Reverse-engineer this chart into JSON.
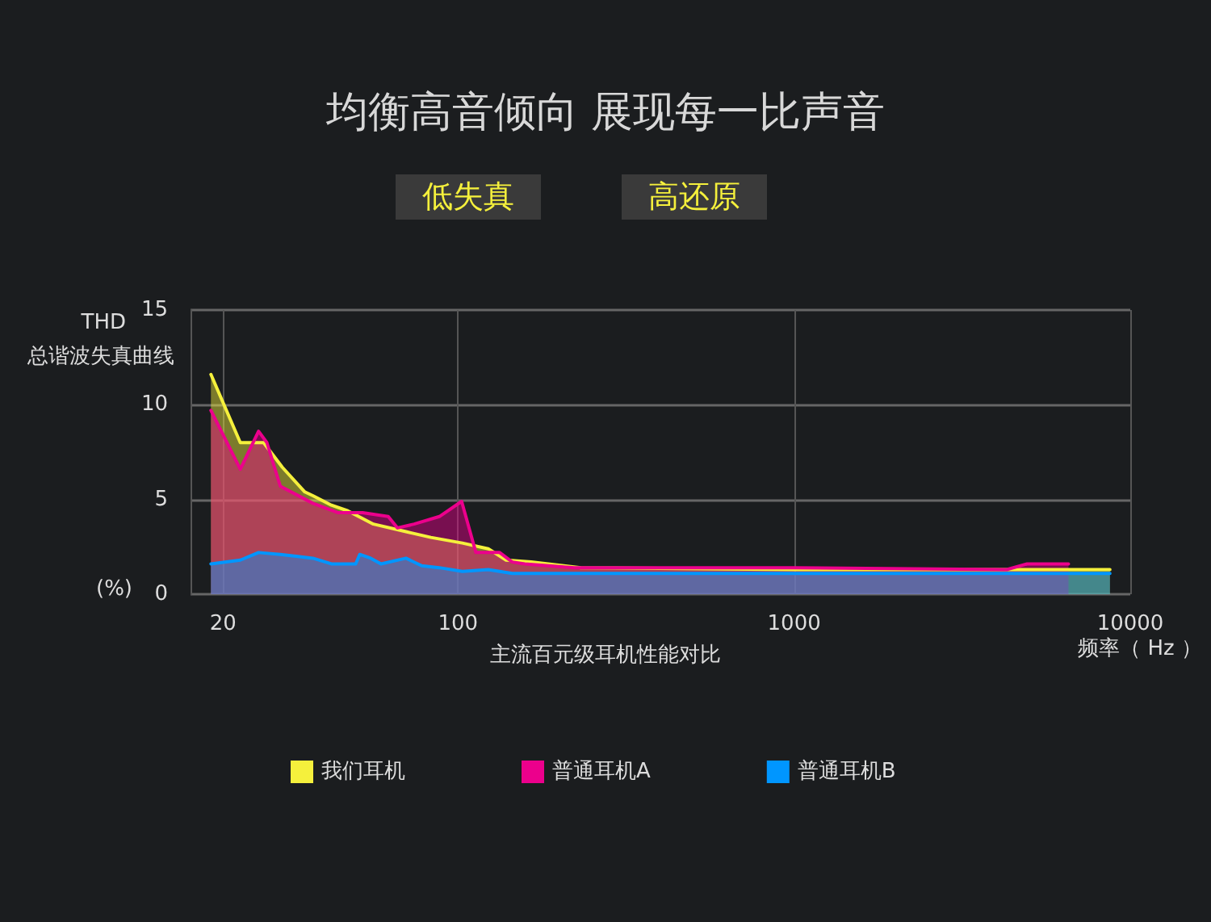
{
  "chart_data": {
    "type": "area",
    "title": "均衡高音倾向 展现每一比声音",
    "ylabel": "THD",
    "xlabel": "频率（ Hz ）",
    "annotations": [
      "低失真",
      "高还原",
      "总谐波失真曲线",
      "(%)",
      "主流百元级耳机性能对比"
    ],
    "xlim": [
      16,
      10000
    ],
    "xticks": [
      20,
      100,
      1000,
      10000
    ],
    "ylim": [
      0,
      15
    ],
    "yticks": [
      0,
      5,
      10,
      15
    ],
    "log": "x",
    "grid": true,
    "legend": "bottom",
    "marker": "none",
    "series": [
      {
        "name": "我们耳机",
        "color": "#f5f03c",
        "x": [
          18.4,
          22.5,
          26.4,
          30,
          35,
          37,
          42,
          47,
          56,
          70,
          83,
          103,
          123,
          139,
          165,
          232,
          1000,
          4600,
          8700
        ],
        "values": [
          11.6,
          8.0,
          8.0,
          6.7,
          5.4,
          5.2,
          4.7,
          4.4,
          3.7,
          3.3,
          3.0,
          2.7,
          2.4,
          1.8,
          1.7,
          1.4,
          1.3,
          1.3,
          1.3
        ]
      },
      {
        "name": "普通耳机A",
        "color": "#ec008c",
        "x": [
          18.4,
          22.5,
          25.5,
          27,
          29.6,
          37,
          44,
          52,
          62,
          66,
          74,
          88,
          102.5,
          113,
          133,
          145,
          158,
          222,
          1000,
          4290,
          4930,
          6550
        ],
        "values": [
          9.7,
          6.6,
          8.6,
          8.0,
          5.7,
          4.8,
          4.3,
          4.3,
          4.1,
          3.5,
          3.7,
          4.1,
          4.9,
          2.2,
          2.2,
          1.7,
          1.6,
          1.4,
          1.4,
          1.3,
          1.6,
          1.6
        ]
      },
      {
        "name": "普通耳机B",
        "color": "#0096ff",
        "x": [
          18.4,
          22.5,
          25.5,
          29.6,
          33,
          37,
          42,
          49.6,
          51,
          55,
          59,
          70,
          78,
          88,
          103,
          123,
          145,
          1000,
          8700
        ],
        "values": [
          1.6,
          1.8,
          2.2,
          2.1,
          2.0,
          1.9,
          1.6,
          1.6,
          2.1,
          1.9,
          1.6,
          1.9,
          1.5,
          1.4,
          1.2,
          1.3,
          1.1,
          1.1,
          1.1
        ]
      }
    ]
  }
}
